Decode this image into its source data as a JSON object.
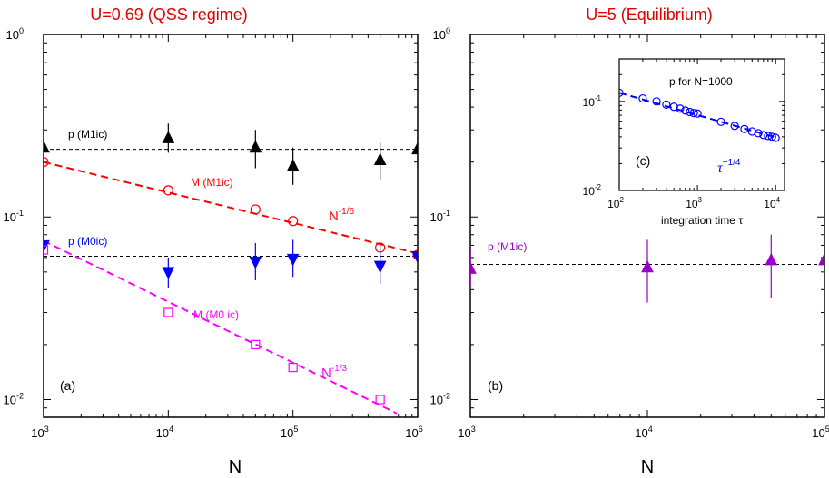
{
  "chart_data": [
    {
      "type": "scatter",
      "panel": "a",
      "title": "U=0.69 (QSS regime)",
      "panel_label": "(a)",
      "xlabel": "N",
      "ylabel": "",
      "xscale": "log",
      "yscale": "log",
      "xlim": [
        1000,
        1000000
      ],
      "ylim": [
        0.008,
        1
      ],
      "xticks": [
        {
          "label": "10",
          "exp": "3",
          "value": 1000
        },
        {
          "label": "10",
          "exp": "4",
          "value": 10000
        },
        {
          "label": "10",
          "exp": "5",
          "value": 100000
        },
        {
          "label": "10",
          "exp": "6",
          "value": 1000000
        }
      ],
      "yticks": [
        {
          "label": "10",
          "exp": "0",
          "value": 1
        },
        {
          "label": "10",
          "exp": "-1",
          "value": 0.1
        },
        {
          "label": "10",
          "exp": "-2",
          "value": 0.01
        }
      ],
      "series": [
        {
          "name": "p (M1ic)",
          "marker": "triangle-up",
          "fill": "#000000",
          "color": "#000000",
          "x": [
            1000,
            10000,
            50000,
            100000,
            500000,
            1000000
          ],
          "y": [
            0.24,
            0.27,
            0.24,
            0.19,
            0.205,
            0.235
          ],
          "err_low": [
            0.205,
            0.225,
            0.185,
            0.15,
            0.16,
            0.185
          ],
          "err_high": [
            0.275,
            0.325,
            0.3,
            0.24,
            0.255,
            0.285
          ]
        },
        {
          "name": "M (M1ic)",
          "marker": "circle-open",
          "fill": "none",
          "color": "#ff0000",
          "x": [
            1000,
            10000,
            50000,
            100000,
            500000,
            1000000
          ],
          "y": [
            0.2,
            0.14,
            0.11,
            0.095,
            0.068,
            0.062
          ]
        },
        {
          "name": "p (M0ic)",
          "marker": "triangle-down",
          "fill": "#0000ff",
          "color": "#0000ff",
          "x": [
            1000,
            10000,
            50000,
            100000,
            500000,
            1000000
          ],
          "y": [
            0.07,
            0.05,
            0.057,
            0.059,
            0.054,
            0.061
          ],
          "err_low": [
            0.058,
            0.041,
            0.045,
            0.047,
            0.043,
            0.047
          ],
          "err_high": [
            0.083,
            0.06,
            0.072,
            0.075,
            0.07,
            0.074
          ]
        },
        {
          "name": "M (M0 ic)",
          "marker": "square-open",
          "fill": "none",
          "color": "#ff00ff",
          "x": [
            1000,
            10000,
            50000,
            100000,
            500000
          ],
          "y": [
            0.066,
            0.03,
            0.02,
            0.015,
            0.01
          ]
        }
      ],
      "reference_lines": [
        {
          "type": "hline",
          "y": 0.235,
          "style": "dashed",
          "color": "#000000"
        },
        {
          "type": "hline",
          "y": 0.061,
          "style": "dashed",
          "color": "#000000"
        },
        {
          "type": "power",
          "x": [
            1000,
            1000000
          ],
          "y": [
            0.2,
            0.0632
          ],
          "style": "dashed",
          "color": "#ff0000",
          "label": "N",
          "exp": "-1/6"
        },
        {
          "type": "power",
          "x": [
            1000,
            680000
          ],
          "y": [
            0.074,
            0.0084
          ],
          "style": "dashed",
          "color": "#ff00ff",
          "label": "N",
          "exp": "-1/3"
        }
      ],
      "annotations": [
        {
          "text": "p  (M1ic)",
          "color": "#000000"
        },
        {
          "text": "M (M1ic)",
          "color": "#ff0000"
        },
        {
          "text": "p  (M0ic)",
          "color": "#0000ff"
        },
        {
          "text": "M  (M0 ic)",
          "color": "#ff00ff"
        }
      ]
    },
    {
      "type": "scatter",
      "panel": "b",
      "title": "U=5 (Equilibrium)",
      "panel_label": "(b)",
      "xlabel": "N",
      "ylabel": "",
      "xscale": "log",
      "yscale": "log",
      "xlim": [
        1000,
        100000
      ],
      "ylim": [
        0.008,
        1
      ],
      "xticks": [
        {
          "label": "10",
          "exp": "3",
          "value": 1000
        },
        {
          "label": "10",
          "exp": "4",
          "value": 10000
        },
        {
          "label": "10",
          "exp": "5",
          "value": 100000
        }
      ],
      "yticks": [
        {
          "label": "10",
          "exp": "0",
          "value": 1
        },
        {
          "label": "10",
          "exp": "-1",
          "value": 0.1
        },
        {
          "label": "10",
          "exp": "-2",
          "value": 0.01
        }
      ],
      "series": [
        {
          "name": "p (M1ic)",
          "marker": "triangle-up",
          "fill": "#9900cc",
          "color": "#9900cc",
          "x": [
            1000,
            10000,
            50000,
            100000
          ],
          "y": [
            0.052,
            0.053,
            0.058,
            0.058
          ],
          "err_low": [
            0.04,
            0.034,
            0.036,
            0.045
          ],
          "err_high": [
            0.066,
            0.075,
            0.08,
            0.07
          ]
        }
      ],
      "reference_lines": [
        {
          "type": "hline",
          "y": 0.055,
          "style": "dashed",
          "color": "#000000"
        }
      ],
      "annotations": [
        {
          "text": "p  (M1ic)",
          "color": "#9900cc"
        }
      ]
    },
    {
      "type": "scatter",
      "panel": "c",
      "title": "",
      "panel_label": "(c)",
      "xlabel": "integration time τ",
      "ylabel": "",
      "xscale": "log",
      "yscale": "log",
      "xlim": [
        100,
        13000
      ],
      "ylim": [
        0.01,
        0.3
      ],
      "xticks": [
        {
          "label": "10",
          "exp": "2",
          "value": 100
        },
        {
          "label": "10",
          "exp": "3",
          "value": 1000
        },
        {
          "label": "10",
          "exp": "4",
          "value": 10000
        }
      ],
      "yticks": [
        {
          "label": "10",
          "exp": "-1",
          "value": 0.1
        },
        {
          "label": "10",
          "exp": "-2",
          "value": 0.01
        }
      ],
      "inset_text": "p  for N=1000",
      "series": [
        {
          "name": "p for N=1000",
          "marker": "circle-open",
          "fill": "none",
          "color": "#0000ff",
          "x": [
            100,
            200,
            300,
            400,
            500,
            600,
            700,
            800,
            900,
            1000,
            2000,
            3000,
            4000,
            5000,
            6000,
            7000,
            8000,
            9000,
            10000
          ],
          "y": [
            0.125,
            0.108,
            0.1,
            0.092,
            0.087,
            0.083,
            0.079,
            0.076,
            0.074,
            0.073,
            0.059,
            0.053,
            0.049,
            0.046,
            0.044,
            0.042,
            0.041,
            0.04,
            0.039
          ]
        }
      ],
      "reference_lines": [
        {
          "type": "power",
          "x": [
            100,
            10000
          ],
          "y": [
            0.125,
            0.0395
          ],
          "style": "dashed",
          "color": "#0000ff",
          "label": "τ",
          "exp": "−1/4"
        }
      ]
    }
  ]
}
